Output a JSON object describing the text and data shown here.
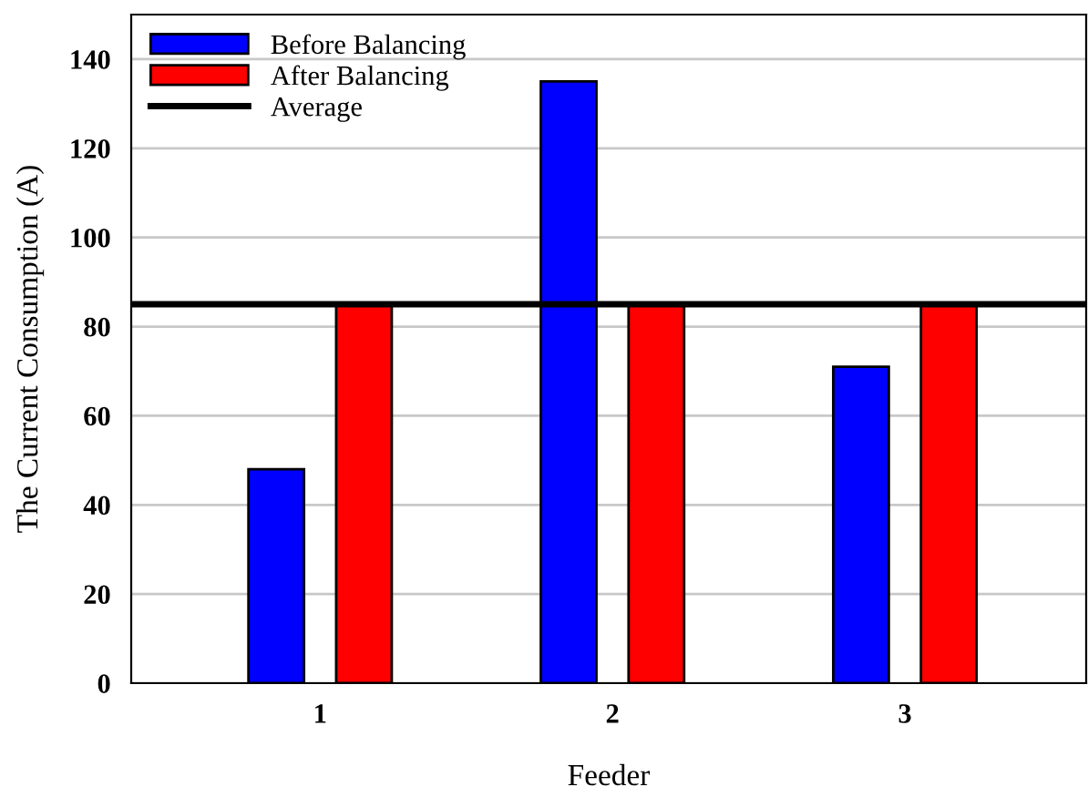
{
  "chart_data": {
    "type": "bar",
    "xlabel": "Feeder",
    "ylabel": "The Current Consumption (A)",
    "categories": [
      "1",
      "2",
      "3"
    ],
    "series": [
      {
        "name": "Before Balancing",
        "color": "#0000ff",
        "values": [
          48,
          135,
          71
        ]
      },
      {
        "name": "After Balancing",
        "color": "#ff0000",
        "values": [
          85,
          85,
          85
        ]
      }
    ],
    "ref_lines": [
      {
        "axis": "y",
        "value": 85,
        "label": "Average",
        "color": "#000000",
        "line_style": "solid"
      }
    ],
    "ylim": [
      0,
      150
    ],
    "yticks": [
      0,
      20,
      40,
      60,
      80,
      100,
      120,
      140
    ],
    "grid": "y",
    "legend": "top left"
  }
}
